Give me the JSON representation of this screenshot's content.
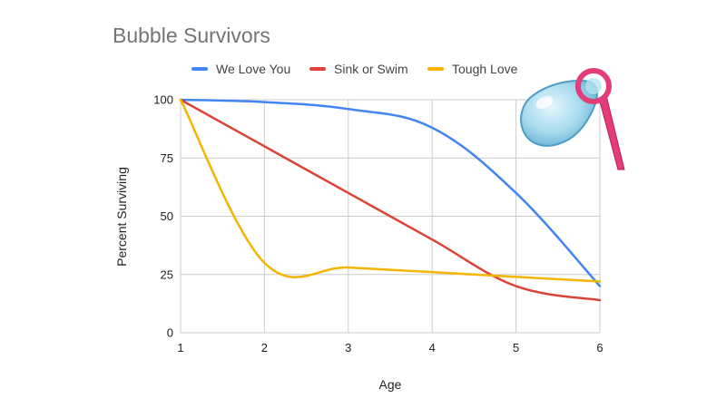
{
  "colors": {
    "we_love_you": "#4285F4",
    "sink_or_swim": "#DB4437",
    "tough_love": "#F4B400",
    "wand": "#E91E63"
  },
  "chart_data": {
    "type": "line",
    "title": "Bubble Survivors",
    "xlabel": "Age",
    "ylabel": "Percent Surviving",
    "x": [
      1,
      2,
      3,
      4,
      5,
      6
    ],
    "xlim": [
      1,
      6
    ],
    "ylim": [
      0,
      100
    ],
    "yticks": [
      0,
      25,
      50,
      75,
      100
    ],
    "xticks": [
      1,
      2,
      3,
      4,
      5,
      6
    ],
    "grid": true,
    "smooth": true,
    "legend_position": "top",
    "series": [
      {
        "name": "We Love You",
        "color": "#4285F4",
        "values": [
          100,
          99,
          96,
          88,
          60,
          20
        ]
      },
      {
        "name": "Sink or Swim",
        "color": "#DB4437",
        "values": [
          100,
          80,
          60,
          40,
          20,
          14
        ]
      },
      {
        "name": "Tough Love",
        "color": "#F4B400",
        "values": [
          100,
          30,
          28,
          26,
          24,
          22
        ]
      }
    ],
    "decoration": {
      "icon": "bubble-wand-icon"
    }
  }
}
